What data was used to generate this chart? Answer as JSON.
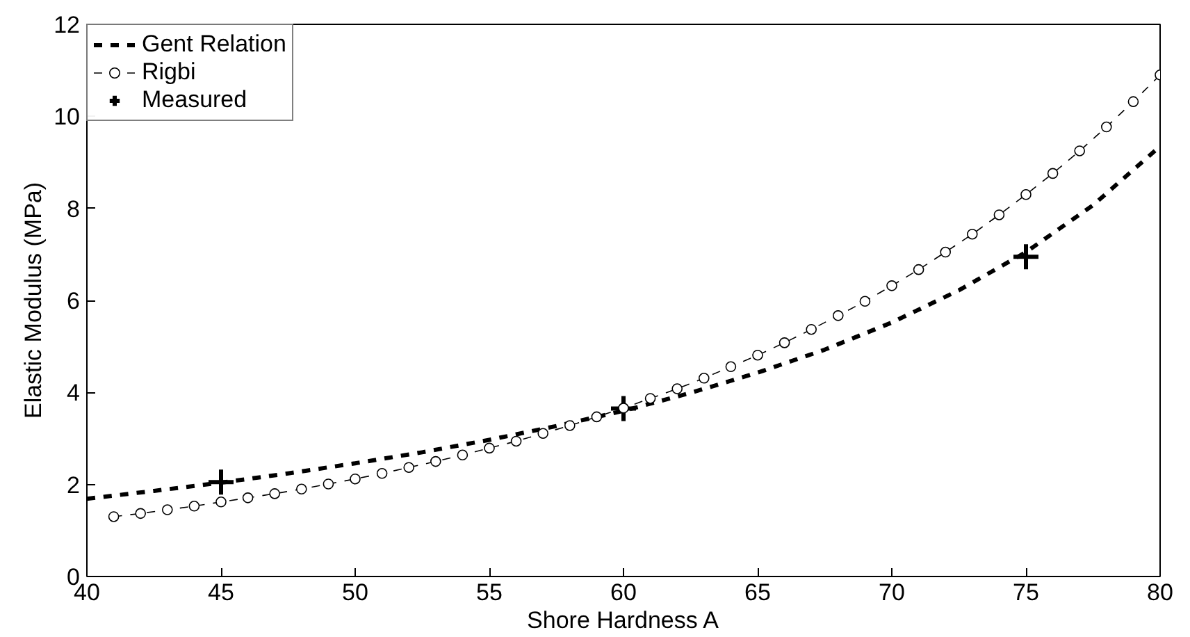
{
  "chart_data": {
    "type": "line",
    "xlabel": "Shore Hardness A",
    "ylabel": "Elastic Modulus (MPa)",
    "xlim": [
      40,
      80
    ],
    "ylim": [
      0,
      12
    ],
    "xticks": [
      40,
      45,
      50,
      55,
      60,
      65,
      70,
      75,
      80
    ],
    "yticks": [
      0,
      2,
      4,
      6,
      8,
      10,
      12
    ],
    "grid": false,
    "legend": "top left",
    "series": [
      {
        "name": "Gent Relation",
        "color": "#000000",
        "line_style": "dashed",
        "marker": "none",
        "x": [
          40,
          42.5,
          45,
          47.5,
          50,
          52.5,
          55,
          57.5,
          60,
          62.5,
          65,
          67.5,
          70,
          72.5,
          75,
          77.5,
          80
        ],
        "values": [
          1.69,
          1.86,
          2.04,
          2.24,
          2.46,
          2.7,
          2.97,
          3.27,
          3.6,
          3.99,
          4.43,
          4.93,
          5.52,
          6.22,
          7.05,
          8.07,
          9.35
        ]
      },
      {
        "name": "Rigbi",
        "color": "#000000",
        "line_style": "dashed",
        "marker": "circle",
        "x": [
          41,
          42,
          43,
          44,
          45,
          46,
          47,
          48,
          49,
          50,
          51,
          52,
          53,
          54,
          55,
          56,
          57,
          58,
          59,
          60,
          61,
          62,
          63,
          64,
          65,
          66,
          67,
          68,
          69,
          70,
          71,
          72,
          73,
          74,
          75,
          76,
          77,
          78,
          79,
          80
        ],
        "values": [
          1.3,
          1.37,
          1.45,
          1.53,
          1.62,
          1.71,
          1.8,
          1.9,
          2.01,
          2.12,
          2.24,
          2.37,
          2.5,
          2.64,
          2.79,
          2.94,
          3.11,
          3.28,
          3.47,
          3.66,
          3.87,
          4.08,
          4.31,
          4.56,
          4.81,
          5.08,
          5.37,
          5.67,
          5.98,
          6.32,
          6.67,
          7.05,
          7.44,
          7.86,
          8.3,
          8.76,
          9.25,
          9.77,
          10.32,
          10.9
        ]
      },
      {
        "name": "Measured",
        "type": "scatter",
        "color": "#000000",
        "marker": "cross",
        "x": [
          45,
          60,
          75
        ],
        "values": [
          2.05,
          3.65,
          6.95
        ]
      }
    ]
  }
}
